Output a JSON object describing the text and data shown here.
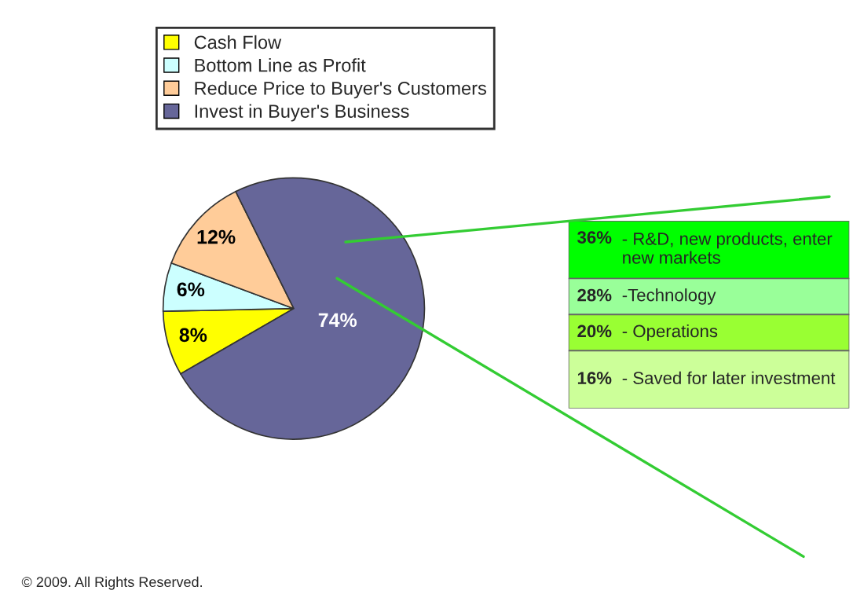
{
  "chart_data": [
    {
      "type": "pie",
      "categories": [
        "Cash Flow",
        "Bottom Line as Profit",
        "Reduce Price to Buyer's Customers",
        "Invest in Buyer's Business"
      ],
      "values": [
        8,
        6,
        12,
        74
      ],
      "colors": [
        "#ffff00",
        "#ccffff",
        "#ffcc99",
        "#666699"
      ],
      "value_labels": [
        "8%",
        "6%",
        "12%",
        "74%"
      ],
      "legend": "top",
      "annotations": [
        "© 2009. All Rights Reserved."
      ]
    },
    {
      "type": "other",
      "categories": [
        "- R&D, new products, enter new markets",
        "-Technology",
        "- Operations",
        "- Saved for later investment"
      ],
      "values": [
        36,
        28,
        20,
        16
      ],
      "colors": [
        "#00ff00",
        "#99ff99",
        "#99ff33",
        "#ccff99"
      ],
      "value_labels": [
        "36%",
        "28%",
        "20%",
        "16%"
      ]
    }
  ]
}
